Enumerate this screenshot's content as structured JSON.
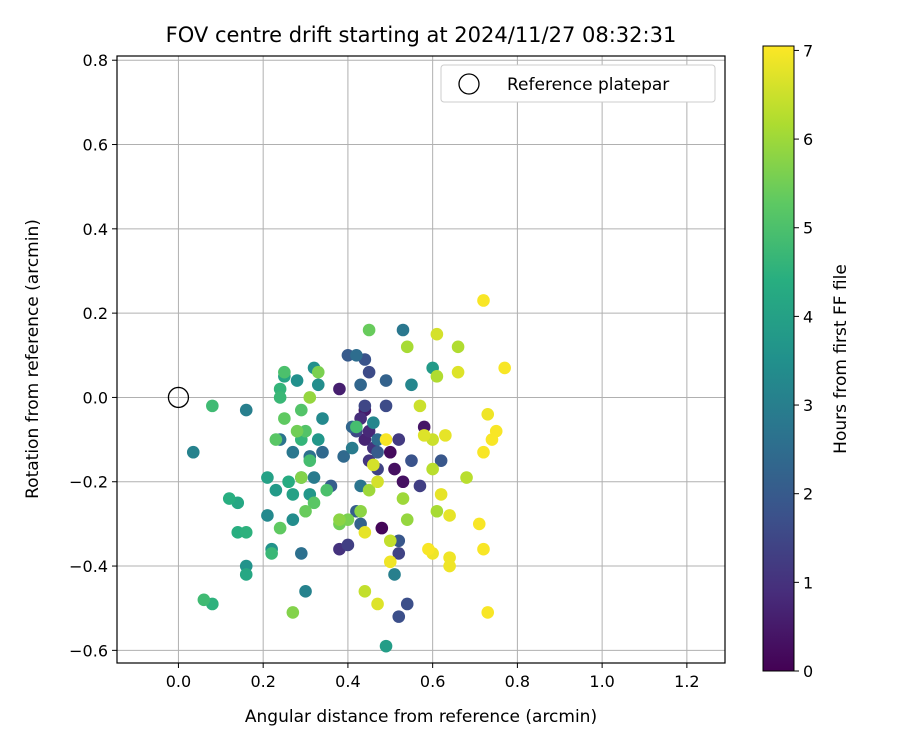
{
  "chart_data": {
    "type": "scatter",
    "title": "FOV centre drift starting at 2024/11/27 08:32:31",
    "xlabel": "Angular distance from reference (arcmin)",
    "ylabel": "Rotation from reference (arcmin)",
    "xlim": [
      -0.145,
      1.29
    ],
    "ylim": [
      -0.63,
      0.81
    ],
    "xticks": [
      0.0,
      0.2,
      0.4,
      0.6,
      0.8,
      1.0,
      1.2
    ],
    "xtick_labels": [
      "0.0",
      "0.2",
      "0.4",
      "0.6",
      "0.8",
      "1.0",
      "1.2"
    ],
    "yticks": [
      -0.6,
      -0.4,
      -0.2,
      0.0,
      0.2,
      0.4,
      0.6,
      0.8
    ],
    "ytick_labels": [
      "−0.6",
      "−0.4",
      "−0.2",
      "0.0",
      "0.2",
      "0.4",
      "0.6",
      "0.8"
    ],
    "grid": true,
    "legend": {
      "placement": "top-right",
      "entries": [
        "Reference platepar"
      ]
    },
    "reference_point": {
      "x": 0.0,
      "y": 0.0
    },
    "colorbar": {
      "label": "Hours from first FF file",
      "range": [
        0,
        7.05
      ],
      "ticks": [
        0,
        1,
        2,
        3,
        4,
        5,
        6,
        7
      ],
      "tick_labels": [
        "0",
        "1",
        "2",
        "3",
        "4",
        "5",
        "6",
        "7"
      ],
      "colormap": "viridis"
    },
    "points": [
      [
        0.48,
        -0.31,
        0.1
      ],
      [
        0.5,
        -0.13,
        0.2
      ],
      [
        0.51,
        -0.17,
        0.3
      ],
      [
        0.53,
        -0.2,
        0.3
      ],
      [
        0.58,
        -0.07,
        0.4
      ],
      [
        0.44,
        -0.03,
        0.5
      ],
      [
        0.38,
        0.02,
        0.6
      ],
      [
        0.44,
        -0.1,
        0.7
      ],
      [
        0.45,
        -0.08,
        0.8
      ],
      [
        0.43,
        -0.05,
        0.9
      ],
      [
        0.46,
        -0.12,
        1.0
      ],
      [
        0.38,
        -0.36,
        1.0
      ],
      [
        0.45,
        -0.15,
        1.1
      ],
      [
        0.52,
        -0.1,
        1.2
      ],
      [
        0.57,
        -0.21,
        1.3
      ],
      [
        0.4,
        -0.35,
        1.3
      ],
      [
        0.52,
        -0.37,
        1.4
      ],
      [
        0.47,
        -0.17,
        1.4
      ],
      [
        0.42,
        -0.08,
        1.5
      ],
      [
        0.44,
        -0.02,
        1.5
      ],
      [
        0.45,
        0.06,
        1.6
      ],
      [
        0.49,
        -0.02,
        1.6
      ],
      [
        0.52,
        -0.52,
        1.7
      ],
      [
        0.54,
        -0.49,
        1.7
      ],
      [
        0.44,
        0.09,
        1.8
      ],
      [
        0.55,
        -0.15,
        1.8
      ],
      [
        0.52,
        -0.34,
        1.9
      ],
      [
        0.62,
        -0.15,
        1.9
      ],
      [
        0.47,
        -0.13,
        2.0
      ],
      [
        0.4,
        0.1,
        2.0
      ],
      [
        0.36,
        -0.21,
        2.1
      ],
      [
        0.42,
        -0.27,
        2.1
      ],
      [
        0.49,
        0.04,
        2.2
      ],
      [
        0.43,
        -0.3,
        2.2
      ],
      [
        0.41,
        -0.07,
        2.3
      ],
      [
        0.43,
        0.03,
        2.3
      ],
      [
        0.34,
        -0.13,
        2.4
      ],
      [
        0.39,
        -0.14,
        2.4
      ],
      [
        0.42,
        0.1,
        2.5
      ],
      [
        0.47,
        -0.1,
        2.5
      ],
      [
        0.29,
        -0.37,
        2.6
      ],
      [
        0.31,
        -0.14,
        2.6
      ],
      [
        0.24,
        -0.1,
        2.7
      ],
      [
        0.43,
        -0.21,
        2.7
      ],
      [
        0.53,
        0.16,
        2.8
      ],
      [
        0.27,
        -0.13,
        2.8
      ],
      [
        0.41,
        -0.12,
        2.9
      ],
      [
        0.32,
        -0.19,
        2.9
      ],
      [
        0.51,
        -0.42,
        3.0
      ],
      [
        0.16,
        -0.03,
        3.0
      ],
      [
        0.035,
        -0.13,
        3.1
      ],
      [
        0.3,
        -0.46,
        3.1
      ],
      [
        0.46,
        -0.06,
        3.2
      ],
      [
        0.55,
        0.03,
        3.2
      ],
      [
        0.34,
        -0.05,
        3.3
      ],
      [
        0.21,
        -0.28,
        3.3
      ],
      [
        0.33,
        0.03,
        3.4
      ],
      [
        0.27,
        -0.29,
        3.4
      ],
      [
        0.32,
        0.07,
        3.5
      ],
      [
        0.28,
        0.04,
        3.5
      ],
      [
        0.22,
        -0.36,
        3.6
      ],
      [
        0.16,
        -0.4,
        3.6
      ],
      [
        0.31,
        -0.23,
        3.7
      ],
      [
        0.33,
        -0.1,
        3.7
      ],
      [
        0.23,
        -0.22,
        3.8
      ],
      [
        0.6,
        0.07,
        3.8
      ],
      [
        0.49,
        -0.59,
        3.9
      ],
      [
        0.27,
        -0.23,
        4.0
      ],
      [
        0.21,
        -0.19,
        4.0
      ],
      [
        0.25,
        0.05,
        4.1
      ],
      [
        0.29,
        -0.19,
        4.1
      ],
      [
        0.16,
        -0.42,
        4.2
      ],
      [
        0.14,
        -0.25,
        4.2
      ],
      [
        0.26,
        -0.2,
        4.3
      ],
      [
        0.14,
        -0.32,
        4.4
      ],
      [
        0.12,
        -0.24,
        4.4
      ],
      [
        0.16,
        -0.32,
        4.5
      ],
      [
        0.08,
        -0.49,
        4.5
      ],
      [
        0.24,
        0.02,
        4.6
      ],
      [
        0.29,
        -0.1,
        4.6
      ],
      [
        0.24,
        0.0,
        4.7
      ],
      [
        0.22,
        -0.37,
        4.7
      ],
      [
        0.08,
        -0.02,
        4.8
      ],
      [
        0.06,
        -0.48,
        4.8
      ],
      [
        0.31,
        -0.15,
        4.9
      ],
      [
        0.42,
        -0.07,
        4.9
      ],
      [
        0.25,
        0.06,
        5.0
      ],
      [
        0.35,
        -0.22,
        5.0
      ],
      [
        0.3,
        -0.08,
        5.1
      ],
      [
        0.29,
        -0.03,
        5.1
      ],
      [
        0.23,
        -0.1,
        5.2
      ],
      [
        0.32,
        -0.25,
        5.2
      ],
      [
        0.24,
        -0.31,
        5.3
      ],
      [
        0.25,
        -0.05,
        5.3
      ],
      [
        0.45,
        0.16,
        5.4
      ],
      [
        0.3,
        -0.27,
        5.4
      ],
      [
        0.28,
        -0.08,
        5.5
      ],
      [
        0.38,
        -0.3,
        5.5
      ],
      [
        0.33,
        0.06,
        5.6
      ],
      [
        0.4,
        -0.29,
        5.6
      ],
      [
        0.27,
        -0.51,
        5.7
      ],
      [
        0.29,
        -0.19,
        5.7
      ],
      [
        0.38,
        -0.29,
        5.8
      ],
      [
        0.43,
        -0.27,
        5.8
      ],
      [
        0.54,
        -0.29,
        5.9
      ],
      [
        0.31,
        0.0,
        5.9
      ],
      [
        0.45,
        -0.22,
        6.0
      ],
      [
        0.53,
        -0.24,
        6.0
      ],
      [
        0.61,
        -0.27,
        6.1
      ],
      [
        0.54,
        0.12,
        6.1
      ],
      [
        0.66,
        0.12,
        6.2
      ],
      [
        0.61,
        0.05,
        6.2
      ],
      [
        0.68,
        -0.19,
        6.3
      ],
      [
        0.6,
        -0.17,
        6.3
      ],
      [
        0.44,
        -0.46,
        6.4
      ],
      [
        0.5,
        -0.34,
        6.4
      ],
      [
        0.57,
        -0.02,
        6.5
      ],
      [
        0.6,
        -0.1,
        6.5
      ],
      [
        0.46,
        -0.16,
        6.6
      ],
      [
        0.61,
        0.15,
        6.6
      ],
      [
        0.47,
        -0.49,
        6.7
      ],
      [
        0.58,
        -0.09,
        6.7
      ],
      [
        0.66,
        0.06,
        6.7
      ],
      [
        0.63,
        -0.09,
        6.8
      ],
      [
        0.62,
        -0.23,
        6.8
      ],
      [
        0.64,
        -0.28,
        6.8
      ],
      [
        0.64,
        -0.38,
        6.9
      ],
      [
        0.6,
        -0.37,
        6.9
      ],
      [
        0.64,
        -0.4,
        6.9
      ],
      [
        0.73,
        -0.04,
        6.9
      ],
      [
        0.72,
        0.23,
        7.0
      ],
      [
        0.74,
        -0.1,
        7.0
      ],
      [
        0.77,
        0.07,
        7.0
      ],
      [
        0.72,
        -0.13,
        7.0
      ],
      [
        0.72,
        -0.36,
        7.0
      ],
      [
        0.73,
        -0.51,
        7.0
      ],
      [
        0.71,
        -0.3,
        7.0
      ],
      [
        0.75,
        -0.08,
        7.0
      ],
      [
        0.5,
        -0.39,
        6.9
      ],
      [
        0.49,
        -0.1,
        7.0
      ],
      [
        0.59,
        -0.36,
        7.0
      ],
      [
        0.44,
        -0.32,
        6.8
      ],
      [
        0.47,
        -0.2,
        6.6
      ]
    ]
  }
}
